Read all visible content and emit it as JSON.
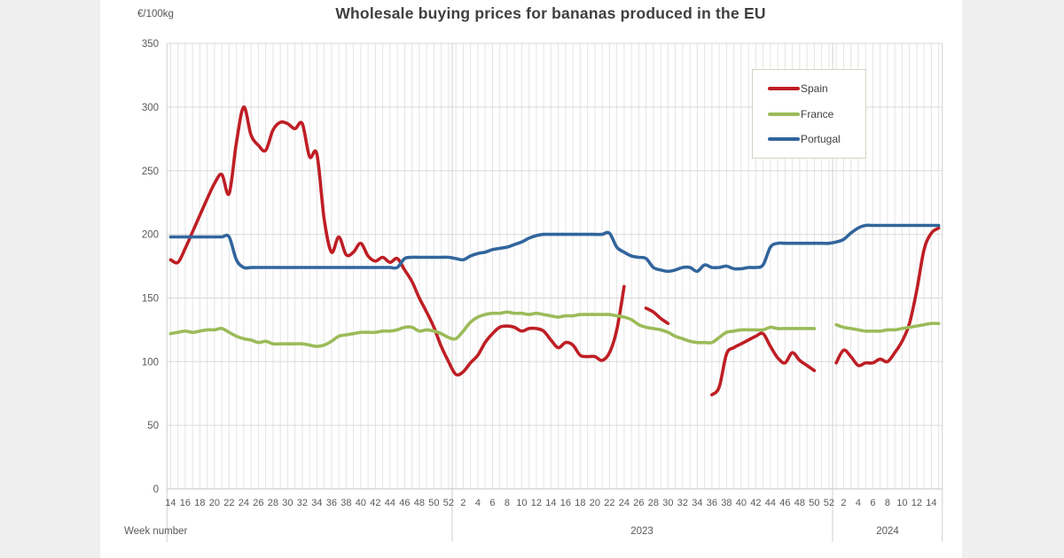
{
  "page": {
    "background": "#efefef",
    "card_background": "#ffffff"
  },
  "chart": {
    "title": "Wholesale buying prices for bananas produced in the EU",
    "y_axis_unit": "€/100kg",
    "x_axis_label": "Week number",
    "year_labels": [
      "2023",
      "2024"
    ],
    "colors": {
      "grid": "#d9d9d9",
      "minor_grid": "#e4e4e4",
      "axis": "#c2c2c2",
      "tick_text": "#595959"
    }
  },
  "chart_data": {
    "type": "line",
    "title": "Wholesale buying prices for bananas produced in the EU",
    "xlabel": "Week number",
    "ylabel": "€/100kg",
    "ylim": [
      0,
      350
    ],
    "y_ticks": [
      0,
      50,
      100,
      150,
      200,
      250,
      300,
      350
    ],
    "grid": true,
    "legend_position": "top-right",
    "x_structure": {
      "2022": "weeks 14-52",
      "2023": "weeks 1-52",
      "2024": "weeks 1-15"
    },
    "x_tick_labels": [
      "14",
      "16",
      "18",
      "20",
      "22",
      "24",
      "26",
      "28",
      "30",
      "32",
      "34",
      "36",
      "38",
      "40",
      "42",
      "44",
      "46",
      "48",
      "50",
      "52",
      "2",
      "4",
      "6",
      "8",
      "10",
      "12",
      "14",
      "16",
      "18",
      "20",
      "22",
      "24",
      "26",
      "28",
      "30",
      "32",
      "34",
      "36",
      "38",
      "40",
      "42",
      "44",
      "46",
      "48",
      "50",
      "52",
      "2",
      "4",
      "6",
      "8",
      "10",
      "12",
      "14"
    ],
    "series": [
      {
        "name": "Spain",
        "color": "#be1e24",
        "values": [
          180,
          178,
          189,
          202,
          215,
          228,
          240,
          247,
          232,
          272,
          300,
          278,
          270,
          266,
          282,
          288,
          287,
          283,
          287,
          261,
          263,
          212,
          186,
          198,
          184,
          186,
          193,
          183,
          179,
          182,
          178,
          181,
          172,
          163,
          150,
          139,
          127,
          112,
          100,
          90,
          92,
          99,
          105,
          115,
          122,
          127,
          128,
          127,
          124,
          126,
          126,
          124,
          117,
          111,
          115,
          113,
          105,
          104,
          104,
          101,
          107,
          125,
          159,
          null,
          null,
          142,
          139,
          134,
          130,
          null,
          null,
          null,
          null,
          null,
          74,
          80,
          106,
          111,
          114,
          117,
          120,
          122,
          112,
          103,
          99,
          107,
          101,
          97,
          93,
          null,
          null,
          99,
          109,
          104,
          97,
          99,
          99,
          102,
          100,
          107,
          116,
          130,
          156,
          188,
          201,
          205
        ]
      },
      {
        "name": "France",
        "color": "#9bbb59",
        "values": [
          122,
          123,
          124,
          123,
          124,
          125,
          125,
          126,
          123,
          120,
          118,
          117,
          115,
          116,
          114,
          114,
          114,
          114,
          114,
          113,
          112,
          113,
          116,
          120,
          121,
          122,
          123,
          123,
          123,
          124,
          124,
          125,
          127,
          127,
          124,
          125,
          124,
          122,
          119,
          118,
          124,
          131,
          135,
          137,
          138,
          138,
          139,
          138,
          138,
          137,
          138,
          137,
          136,
          135,
          136,
          136,
          137,
          137,
          137,
          137,
          137,
          136,
          135,
          133,
          129,
          127,
          126,
          125,
          123,
          120,
          118,
          116,
          115,
          115,
          115,
          119,
          123,
          124,
          125,
          125,
          125,
          125,
          127,
          126,
          126,
          126,
          126,
          126,
          126,
          null,
          null,
          129,
          127,
          126,
          125,
          124,
          124,
          124,
          125,
          125,
          126,
          127,
          128,
          129,
          130,
          130
        ]
      },
      {
        "name": "Portugal",
        "color": "#31659c",
        "values": [
          198,
          198,
          198,
          198,
          198,
          198,
          198,
          198,
          198,
          180,
          174,
          174,
          174,
          174,
          174,
          174,
          174,
          174,
          174,
          174,
          174,
          174,
          174,
          174,
          174,
          174,
          174,
          174,
          174,
          174,
          174,
          174,
          181,
          182,
          182,
          182,
          182,
          182,
          182,
          181,
          180,
          183,
          185,
          186,
          188,
          189,
          190,
          192,
          194,
          197,
          199,
          200,
          200,
          200,
          200,
          200,
          200,
          200,
          200,
          200,
          201,
          190,
          186,
          183,
          182,
          181,
          174,
          172,
          171,
          172,
          174,
          174,
          171,
          176,
          174,
          174,
          175,
          173,
          173,
          174,
          174,
          176,
          190,
          193,
          193,
          193,
          193,
          193,
          193,
          193,
          193,
          194,
          196,
          201,
          205,
          207,
          207,
          207,
          207,
          207,
          207,
          207,
          207,
          207,
          207,
          207
        ]
      }
    ]
  }
}
